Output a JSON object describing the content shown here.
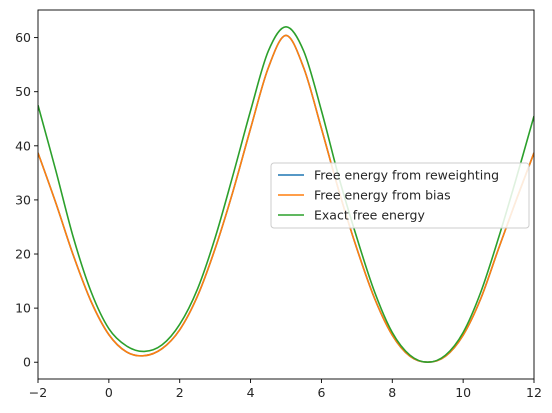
{
  "chart_data": {
    "type": "line",
    "title": "",
    "xlabel": "",
    "ylabel": "",
    "xlim": [
      -2,
      12
    ],
    "ylim": [
      -3.1,
      65.1
    ],
    "xticks": [
      -2,
      0,
      2,
      4,
      6,
      8,
      10,
      12
    ],
    "yticks": [
      0,
      10,
      20,
      30,
      40,
      50,
      60
    ],
    "grid": false,
    "legend_position": "center-right",
    "series": [
      {
        "name": "Free energy from reweighting",
        "color": "#1f77b4",
        "x": [
          -2,
          -1.5,
          -1,
          -0.5,
          0,
          0.5,
          1,
          1.5,
          2,
          2.5,
          3,
          3.5,
          4,
          4.5,
          5,
          5.5,
          6,
          6.5,
          7,
          7.5,
          8,
          8.5,
          9,
          9.5,
          10,
          10.5,
          11,
          11.5,
          12
        ],
        "y": [
          38.7,
          29.5,
          19.7,
          11.2,
          5.1,
          1.9,
          1.2,
          2.5,
          6.0,
          12.2,
          21.0,
          31.5,
          43.2,
          54.4,
          60.4,
          54.4,
          43.2,
          31.5,
          21.0,
          11.8,
          5.0,
          1.1,
          0.0,
          1.1,
          5.0,
          11.8,
          21.0,
          30.0,
          38.7
        ]
      },
      {
        "name": "Free energy from bias",
        "color": "#ff7f0e",
        "x": [
          -2,
          -1.5,
          -1,
          -0.5,
          0,
          0.5,
          1,
          1.5,
          2,
          2.5,
          3,
          3.5,
          4,
          4.5,
          5,
          5.5,
          6,
          6.5,
          7,
          7.5,
          8,
          8.5,
          9,
          9.5,
          10,
          10.5,
          11,
          11.5,
          12
        ],
        "y": [
          38.7,
          29.5,
          19.7,
          11.2,
          5.1,
          1.9,
          1.2,
          2.5,
          6.0,
          12.2,
          21.0,
          31.5,
          43.2,
          54.4,
          60.4,
          54.4,
          43.2,
          31.5,
          21.0,
          11.8,
          5.0,
          1.1,
          0.0,
          1.1,
          5.0,
          11.8,
          21.0,
          30.0,
          38.7
        ]
      },
      {
        "name": "Exact free energy",
        "color": "#2ca02c",
        "x": [
          -2,
          -1.5,
          -1,
          -0.5,
          0,
          0.5,
          1,
          1.5,
          2,
          2.5,
          3,
          3.5,
          4,
          4.5,
          5,
          5.5,
          6,
          6.5,
          7,
          7.5,
          8,
          8.5,
          9,
          9.5,
          10,
          10.5,
          11,
          11.5,
          12
        ],
        "y": [
          47.5,
          35.5,
          23.0,
          13.0,
          6.2,
          3.0,
          2.0,
          3.2,
          7.0,
          13.5,
          23.0,
          34.5,
          46.5,
          57.5,
          62.0,
          57.5,
          46.5,
          34.0,
          23.0,
          13.0,
          5.5,
          1.3,
          0.0,
          1.3,
          5.5,
          13.0,
          23.0,
          34.0,
          45.5
        ]
      }
    ]
  }
}
